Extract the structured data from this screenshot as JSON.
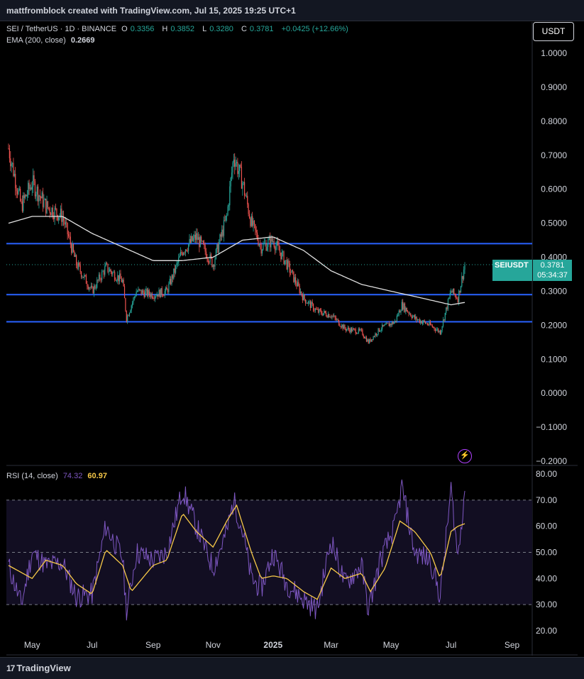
{
  "header": {
    "text": "mattfromblock created with TradingView.com, Jul 15, 2025 19:25 UTC+1"
  },
  "legend": {
    "symbol": "SEI / TetherUS · 1D · BINANCE",
    "open_label": "O",
    "open": "0.3356",
    "high_label": "H",
    "high": "0.3852",
    "low_label": "L",
    "low": "0.3280",
    "close_label": "C",
    "close": "0.3781",
    "change": "+0.0425 (+12.66%)",
    "ema_label": "EMA (200, close)",
    "ema_value": "0.2669",
    "rsi_label": "RSI (14, close)",
    "rsi_value": "74.32",
    "rsi_ma_value": "60.97"
  },
  "currency_button": "USDT",
  "last_price": {
    "symbol": "SEIUSDT",
    "price": "0.3781",
    "countdown": "05:34:37"
  },
  "footer": {
    "brand": "TradingView",
    "mark": "17"
  },
  "colors": {
    "up": "#26a69a",
    "down": "#ef5350",
    "ema": "#e0e0e0",
    "hline": "#2962ff",
    "rsi": "#7e57c2",
    "rsi_ma": "#f7c948",
    "rsi_band": "#120e22"
  },
  "chart_data": [
    {
      "type": "candlestick",
      "title": "SEI / TetherUS · 1D · BINANCE",
      "x_tick_labels": [
        "May",
        "Jul",
        "Sep",
        "Nov",
        "2025",
        "Mar",
        "May",
        "Jul",
        "Sep"
      ],
      "y_ticks": [
        "1.0000",
        "0.9000",
        "0.8000",
        "0.7000",
        "0.6000",
        "0.5000",
        "0.4000",
        "0.3000",
        "0.2000",
        "0.1000",
        "0.0000",
        "−0.1000",
        "−0.2000"
      ],
      "ylim": [
        -0.2,
        1.0
      ],
      "horizontal_lines": [
        0.44,
        0.29,
        0.21
      ],
      "series": [
        {
          "name": "SEIUSDT",
          "approx_close_path": [
            [
              "2024-04-07",
              0.72
            ],
            [
              "2024-04-20",
              0.55
            ],
            [
              "2024-05-01",
              0.62
            ],
            [
              "2024-05-15",
              0.55
            ],
            [
              "2024-06-01",
              0.52
            ],
            [
              "2024-06-15",
              0.38
            ],
            [
              "2024-07-01",
              0.3
            ],
            [
              "2024-07-15",
              0.37
            ],
            [
              "2024-08-01",
              0.33
            ],
            [
              "2024-08-05",
              0.22
            ],
            [
              "2024-08-15",
              0.3
            ],
            [
              "2024-09-01",
              0.29
            ],
            [
              "2024-09-15",
              0.3
            ],
            [
              "2024-10-01",
              0.42
            ],
            [
              "2024-10-15",
              0.46
            ],
            [
              "2024-11-01",
              0.38
            ],
            [
              "2024-11-15",
              0.52
            ],
            [
              "2024-11-22",
              0.7
            ],
            [
              "2024-12-01",
              0.62
            ],
            [
              "2024-12-10",
              0.5
            ],
            [
              "2024-12-20",
              0.43
            ],
            [
              "2025-01-01",
              0.45
            ],
            [
              "2025-01-15",
              0.38
            ],
            [
              "2025-02-01",
              0.28
            ],
            [
              "2025-02-15",
              0.24
            ],
            [
              "2025-03-01",
              0.23
            ],
            [
              "2025-03-15",
              0.19
            ],
            [
              "2025-04-01",
              0.18
            ],
            [
              "2025-04-08",
              0.15
            ],
            [
              "2025-04-20",
              0.19
            ],
            [
              "2025-05-05",
              0.21
            ],
            [
              "2025-05-12",
              0.26
            ],
            [
              "2025-05-25",
              0.22
            ],
            [
              "2025-06-10",
              0.2
            ],
            [
              "2025-06-20",
              0.18
            ],
            [
              "2025-07-01",
              0.3
            ],
            [
              "2025-07-08",
              0.28
            ],
            [
              "2025-07-15",
              0.3781
            ]
          ]
        },
        {
          "name": "EMA (200, close)",
          "approx_path": [
            [
              "2024-04-07",
              0.5
            ],
            [
              "2024-05-01",
              0.52
            ],
            [
              "2024-06-01",
              0.52
            ],
            [
              "2024-07-01",
              0.47
            ],
            [
              "2024-08-01",
              0.43
            ],
            [
              "2024-09-01",
              0.39
            ],
            [
              "2024-10-01",
              0.39
            ],
            [
              "2024-11-01",
              0.4
            ],
            [
              "2024-12-01",
              0.45
            ],
            [
              "2025-01-01",
              0.46
            ],
            [
              "2025-02-01",
              0.42
            ],
            [
              "2025-03-01",
              0.36
            ],
            [
              "2025-04-01",
              0.32
            ],
            [
              "2025-05-01",
              0.3
            ],
            [
              "2025-06-01",
              0.28
            ],
            [
              "2025-07-01",
              0.26
            ],
            [
              "2025-07-15",
              0.2669
            ]
          ]
        }
      ]
    },
    {
      "type": "line",
      "title": "RSI (14, close)",
      "y_ticks": [
        "80.00",
        "70.00",
        "60.00",
        "50.00",
        "40.00",
        "30.00",
        "20.00"
      ],
      "ylim": [
        20,
        80
      ],
      "reference_lines": [
        70,
        50,
        30
      ],
      "series": [
        {
          "name": "RSI (14, close)",
          "approx_path": [
            [
              "2024-04-07",
              45
            ],
            [
              "2024-04-20",
              30
            ],
            [
              "2024-05-01",
              50
            ],
            [
              "2024-05-15",
              45
            ],
            [
              "2024-06-01",
              46
            ],
            [
              "2024-06-15",
              33
            ],
            [
              "2024-07-01",
              34
            ],
            [
              "2024-07-15",
              60
            ],
            [
              "2024-08-01",
              48
            ],
            [
              "2024-08-05",
              27
            ],
            [
              "2024-08-15",
              50
            ],
            [
              "2024-09-01",
              47
            ],
            [
              "2024-09-15",
              50
            ],
            [
              "2024-10-01",
              74
            ],
            [
              "2024-10-15",
              60
            ],
            [
              "2024-11-01",
              44
            ],
            [
              "2024-11-15",
              58
            ],
            [
              "2024-11-22",
              70
            ],
            [
              "2024-12-01",
              58
            ],
            [
              "2024-12-10",
              40
            ],
            [
              "2024-12-20",
              36
            ],
            [
              "2025-01-01",
              50
            ],
            [
              "2025-01-15",
              38
            ],
            [
              "2025-02-01",
              32
            ],
            [
              "2025-02-15",
              28
            ],
            [
              "2025-03-01",
              55
            ],
            [
              "2025-03-15",
              38
            ],
            [
              "2025-04-01",
              45
            ],
            [
              "2025-04-08",
              28
            ],
            [
              "2025-04-20",
              47
            ],
            [
              "2025-05-05",
              60
            ],
            [
              "2025-05-12",
              75
            ],
            [
              "2025-05-25",
              50
            ],
            [
              "2025-06-10",
              47
            ],
            [
              "2025-06-20",
              33
            ],
            [
              "2025-07-01",
              74
            ],
            [
              "2025-07-08",
              48
            ],
            [
              "2025-07-15",
              74.32
            ]
          ]
        },
        {
          "name": "RSI-based MA",
          "approx_path": [
            [
              "2024-04-07",
              45
            ],
            [
              "2024-05-01",
              40
            ],
            [
              "2024-05-15",
              47
            ],
            [
              "2024-06-01",
              45
            ],
            [
              "2024-06-15",
              38
            ],
            [
              "2024-07-01",
              34
            ],
            [
              "2024-07-15",
              51
            ],
            [
              "2024-08-01",
              45
            ],
            [
              "2024-08-10",
              35
            ],
            [
              "2024-09-01",
              45
            ],
            [
              "2024-09-15",
              47
            ],
            [
              "2024-10-01",
              65
            ],
            [
              "2024-10-15",
              58
            ],
            [
              "2024-11-01",
              52
            ],
            [
              "2024-11-15",
              62
            ],
            [
              "2024-11-25",
              68
            ],
            [
              "2024-12-10",
              50
            ],
            [
              "2024-12-20",
              40
            ],
            [
              "2025-01-01",
              41
            ],
            [
              "2025-01-15",
              40
            ],
            [
              "2025-02-01",
              35
            ],
            [
              "2025-02-15",
              32
            ],
            [
              "2025-03-01",
              44
            ],
            [
              "2025-03-15",
              40
            ],
            [
              "2025-04-01",
              42
            ],
            [
              "2025-04-10",
              35
            ],
            [
              "2025-04-25",
              44
            ],
            [
              "2025-05-10",
              62
            ],
            [
              "2025-05-25",
              58
            ],
            [
              "2025-06-10",
              50
            ],
            [
              "2025-06-20",
              40
            ],
            [
              "2025-07-01",
              58
            ],
            [
              "2025-07-08",
              60
            ],
            [
              "2025-07-15",
              60.97
            ]
          ]
        }
      ]
    }
  ]
}
